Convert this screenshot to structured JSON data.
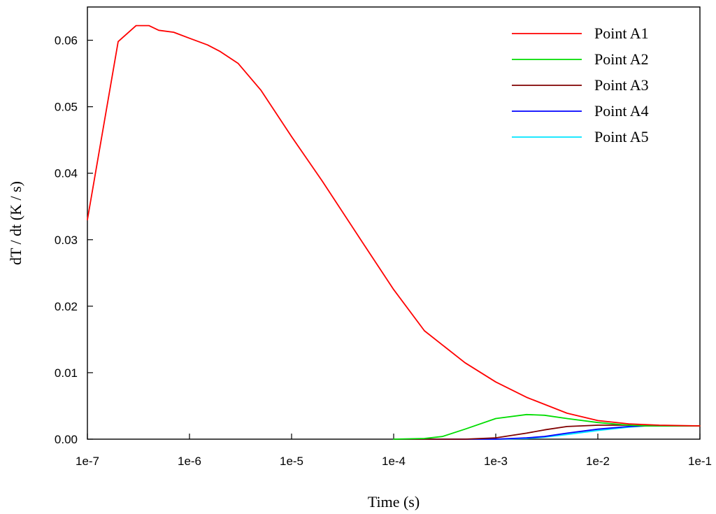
{
  "chart_data": {
    "type": "line",
    "title": "",
    "xlabel": "Time (s)",
    "ylabel": "dT / dt (K / s)",
    "xscale": "log",
    "xlim": [
      1e-07,
      0.1
    ],
    "ylim": [
      0,
      0.065
    ],
    "x_ticks": [
      1e-07,
      1e-06,
      1e-05,
      0.0001,
      0.001,
      0.01,
      0.1
    ],
    "x_tick_labels": [
      "1e-7",
      "1e-6",
      "1e-5",
      "1e-4",
      "1e-3",
      "1e-2",
      "1e-1"
    ],
    "y_ticks": [
      0,
      0.01,
      0.02,
      0.03,
      0.04,
      0.05,
      0.06
    ],
    "y_tick_labels": [
      "0.00",
      "0.01",
      "0.02",
      "0.03",
      "0.04",
      "0.05",
      "0.06"
    ],
    "grid": false,
    "legend_position": "top-right",
    "series": [
      {
        "name": "Point A1",
        "color": "#ff0000",
        "x": [
          1e-07,
          2e-07,
          3e-07,
          4e-07,
          5e-07,
          7e-07,
          1e-06,
          1.5e-06,
          2e-06,
          3e-06,
          5e-06,
          1e-05,
          2e-05,
          5e-05,
          0.0001,
          0.0002,
          0.0005,
          0.001,
          0.002,
          0.005,
          0.01,
          0.02,
          0.04,
          0.1
        ],
        "y": [
          0.033,
          0.0598,
          0.0622,
          0.0622,
          0.0615,
          0.0612,
          0.0603,
          0.0593,
          0.0583,
          0.0565,
          0.0525,
          0.0455,
          0.0388,
          0.0295,
          0.0225,
          0.0163,
          0.0115,
          0.0086,
          0.0063,
          0.0039,
          0.0028,
          0.0023,
          0.0021,
          0.002
        ]
      },
      {
        "name": "Point A2",
        "color": "#00dd00",
        "x": [
          0.0001,
          0.0002,
          0.0003,
          0.0005,
          0.001,
          0.002,
          0.003,
          0.005,
          0.01,
          0.02,
          0.03,
          0.1
        ],
        "y": [
          0,
          0.0001,
          0.0004,
          0.0015,
          0.0031,
          0.0037,
          0.0036,
          0.0031,
          0.0025,
          0.0021,
          0.002,
          0.002
        ]
      },
      {
        "name": "Point A3",
        "color": "#800000",
        "x": [
          0.0001,
          0.0005,
          0.001,
          0.002,
          0.003,
          0.005,
          0.01,
          0.02,
          0.03,
          0.1
        ],
        "y": [
          0,
          0,
          0.0002,
          0.0009,
          0.0014,
          0.0019,
          0.0021,
          0.0021,
          0.002,
          0.002
        ]
      },
      {
        "name": "Point A4",
        "color": "#0000ff",
        "x": [
          0.0001,
          0.001,
          0.002,
          0.003,
          0.005,
          0.01,
          0.02,
          0.03,
          0.1
        ],
        "y": [
          0,
          0,
          0.0002,
          0.0004,
          0.0009,
          0.0015,
          0.0019,
          0.002,
          0.002
        ]
      },
      {
        "name": "Point A5",
        "color": "#00e5ff",
        "x": [
          0.0001,
          0.001,
          0.002,
          0.003,
          0.005,
          0.01,
          0.02,
          0.03,
          0.1
        ],
        "y": [
          0,
          0,
          0.0001,
          0.0003,
          0.0007,
          0.0013,
          0.0018,
          0.002,
          0.002
        ]
      }
    ]
  }
}
